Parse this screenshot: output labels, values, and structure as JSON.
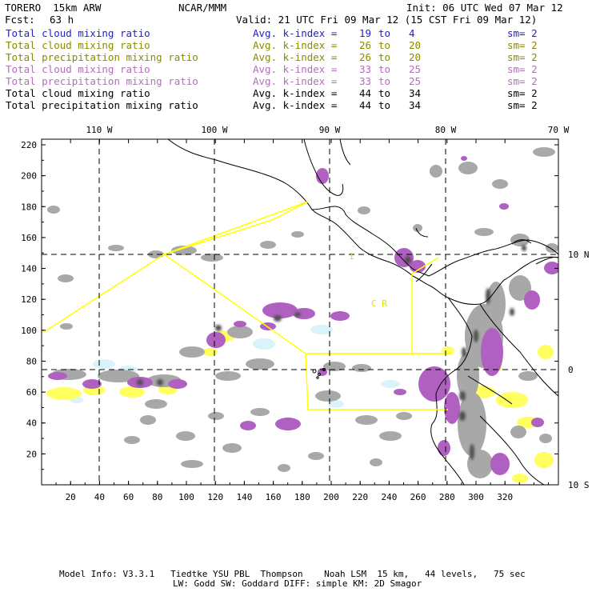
{
  "header": {
    "model": "TORERO  15km ARW",
    "org": "NCAR/MMM",
    "init": "Init: 06 UTC Wed 07 Mar 12",
    "fcst_label": "Fcst:",
    "fcst_value": "63 h",
    "valid": "Valid: 21 UTC Fri 09 Mar 12 (15 CST Fri 09 Mar 12)"
  },
  "legend": [
    {
      "field": "Total cloud mixing ratio",
      "kindex": "Avg. k-index =",
      "from": "19",
      "to_word": "to",
      "to": "4",
      "sm": "sm= 2",
      "color": "#2020d0"
    },
    {
      "field": "Total cloud mixing ratio",
      "kindex": "Avg. k-index =",
      "from": "26",
      "to_word": "to",
      "to": "20",
      "sm": "sm= 2",
      "color": "#8a8a00"
    },
    {
      "field": "Total precipitation mixing ratio",
      "kindex": "Avg. k-index =",
      "from": "26",
      "to_word": "to",
      "to": "20",
      "sm": "sm= 2",
      "color": "#8a8a00"
    },
    {
      "field": "Total cloud mixing ratio",
      "kindex": "Avg. k-index =",
      "from": "33",
      "to_word": "to",
      "to": "25",
      "sm": "sm= 2",
      "color": "#b070b8"
    },
    {
      "field": "Total precipitation mixing ratio",
      "kindex": "Avg. k-index =",
      "from": "33",
      "to_word": "to",
      "to": "25",
      "sm": "sm= 2",
      "color": "#b070b8"
    },
    {
      "field": "Total cloud mixing ratio",
      "kindex": "Avg. k-index =",
      "from": "44",
      "to_word": "to",
      "to": "34",
      "sm": "sm= 2",
      "color": "#000000"
    },
    {
      "field": "Total precipitation mixing ratio",
      "kindex": "Avg. k-index =",
      "from": "44",
      "to_word": "to",
      "to": "34",
      "sm": "sm= 2",
      "color": "#000000"
    }
  ],
  "map": {
    "longitude_labels": [
      "110 W",
      "100 W",
      "90 W",
      "80 W",
      "70 W"
    ],
    "latitude_labels": [
      "10 N",
      "0",
      "10 S"
    ],
    "y_ticks": [
      "220",
      "200",
      "180",
      "160",
      "140",
      "120",
      "100",
      "80",
      "60",
      "40",
      "20"
    ],
    "x_ticks": [
      "20",
      "40",
      "60",
      "80",
      "100",
      "120",
      "140",
      "160",
      "180",
      "200",
      "220",
      "240",
      "260",
      "280",
      "300",
      "320"
    ],
    "region_label_1": "1",
    "region_label_2": "C  R",
    "colors": {
      "gray": "#a0a0a0",
      "dark": "#505050",
      "purple": "#b060c0",
      "yellow": "#ffff60",
      "cyan": "#d8f4fa",
      "box": "#ffff00"
    }
  },
  "footer": {
    "line1": "Model Info: V3.3.1   Tiedtke YSU PBL  Thompson    Noah LSM  15 km,   44 levels,   75 sec",
    "line2": "LW: Godd SW: Goddard DIFF: simple KM: 2D Smagor"
  }
}
